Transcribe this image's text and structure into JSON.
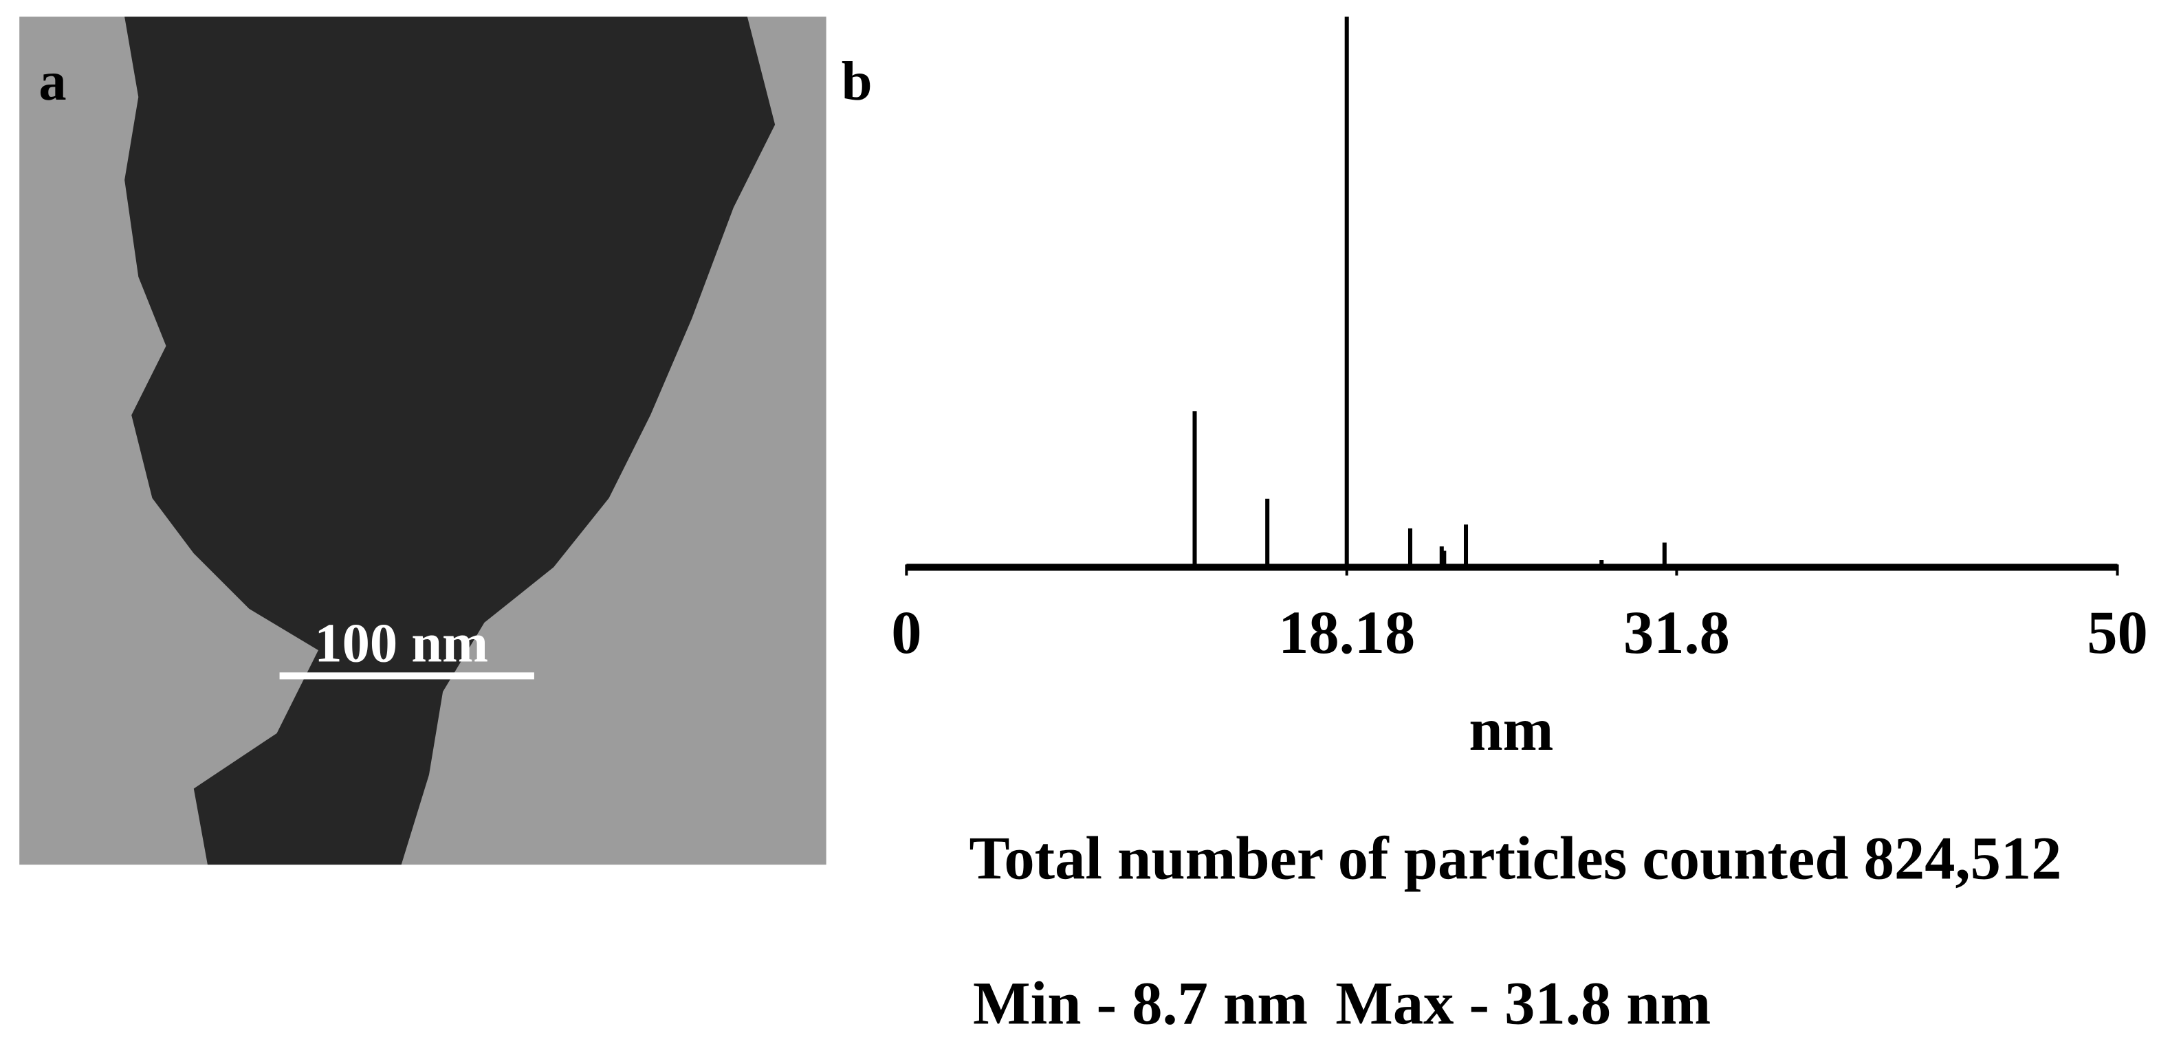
{
  "chart_data": {
    "type": "stem",
    "panel_labels": [
      "a",
      "b"
    ],
    "scale_bar_label": "100 nm",
    "x_label": "nm",
    "caption": "Total number of particles counted 824,512",
    "min_label": "Min - 8.7 nm",
    "max_label": "Max - 31.8 nm",
    "x": [
      11.9,
      14.9,
      18.18,
      20.8,
      22.1,
      22.2,
      23.1,
      28.7,
      31.3
    ],
    "values": [
      28,
      12,
      100,
      6.6,
      3.3,
      2.5,
      7.3,
      0.8,
      4
    ],
    "color": "#000000",
    "xlim": [
      0,
      50
    ],
    "xticks": [
      0,
      18.18,
      31.8,
      50
    ],
    "ylim": [
      0,
      100
    ]
  }
}
